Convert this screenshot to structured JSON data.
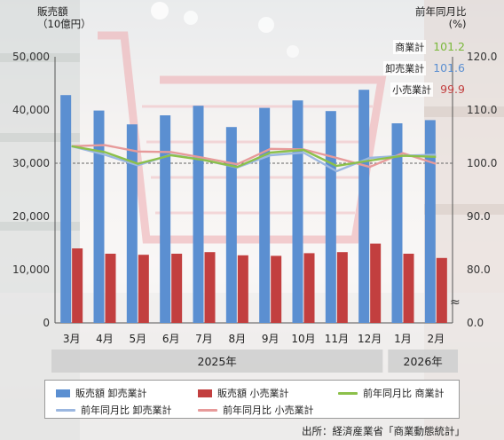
{
  "chart_data": {
    "type": "bar",
    "y_left_label": "販売額",
    "y_left_unit": "（10億円）",
    "y_right_label": "前年同月比",
    "y_right_unit": "(%)",
    "left_ticks": [
      "0",
      "10,000",
      "20,000",
      "30,000",
      "40,000",
      "50,000"
    ],
    "right_ticks": [
      "0.0",
      "80.0",
      "90.0",
      "100.0",
      "110.0",
      "120.0"
    ],
    "left_ylim": [
      0,
      50000
    ],
    "right_ylim_display": [
      75,
      120
    ],
    "right_axis_break": "≈",
    "categories": [
      "3月",
      "4月",
      "5月",
      "6月",
      "7月",
      "8月",
      "9月",
      "10月",
      "11月",
      "12月",
      "1月",
      "2月"
    ],
    "year_groups": [
      {
        "label": "2025年",
        "span": 10
      },
      {
        "label": "2026年",
        "span": 2
      }
    ],
    "bar_series": [
      {
        "name": "販売額 卸売業計",
        "color": "#5b8fd1",
        "values": [
          42800,
          39900,
          37300,
          39000,
          40800,
          36800,
          40400,
          41800,
          39800,
          43800,
          37500,
          38100
        ]
      },
      {
        "name": "販売額 小売業計",
        "color": "#c23f3f",
        "values": [
          14000,
          13000,
          12800,
          13000,
          13300,
          12700,
          12600,
          13100,
          13300,
          14900,
          13000,
          12200
        ]
      }
    ],
    "line_series": [
      {
        "name": "前年同月比 商業計",
        "color": "#8cc04a",
        "values": [
          103.2,
          102.1,
          99.9,
          101.5,
          100.6,
          99.3,
          102.0,
          102.5,
          99.5,
          100.5,
          101.4,
          101.2
        ]
      },
      {
        "name": "前年同月比 卸売業計",
        "color": "#9bb7e0",
        "values": [
          103.2,
          101.6,
          99.6,
          101.6,
          100.6,
          99.2,
          101.5,
          102.0,
          98.5,
          101.0,
          101.4,
          101.6
        ]
      },
      {
        "name": "前年同月比 小売業計",
        "color": "#e79a9a",
        "values": [
          103.2,
          103.4,
          102.2,
          102.1,
          101.0,
          99.8,
          102.7,
          102.6,
          101.0,
          99.3,
          101.9,
          99.9
        ]
      }
    ],
    "reference_line": 100.0,
    "grid": false
  },
  "callout": [
    {
      "label": "商業計",
      "value": "101.2",
      "color": "#7ab83a"
    },
    {
      "label": "卸売業計",
      "value": "101.6",
      "color": "#5b8fd1"
    },
    {
      "label": "小売業計",
      "value": "99.9",
      "color": "#c23f3f"
    }
  ],
  "legend": [
    {
      "label": "販売額 卸売業計",
      "kind": "bar",
      "color": "#5b8fd1"
    },
    {
      "label": "販売額 小売業計",
      "kind": "bar",
      "color": "#c23f3f"
    },
    {
      "label": "前年同月比 商業計",
      "kind": "line",
      "color": "#8cc04a"
    },
    {
      "label": "前年同月比 卸売業計",
      "kind": "line",
      "color": "#9bb7e0"
    },
    {
      "label": "前年同月比 小売業計",
      "kind": "line",
      "color": "#e79a9a"
    }
  ],
  "source": "出所：経済産業省「商業動態統計」"
}
